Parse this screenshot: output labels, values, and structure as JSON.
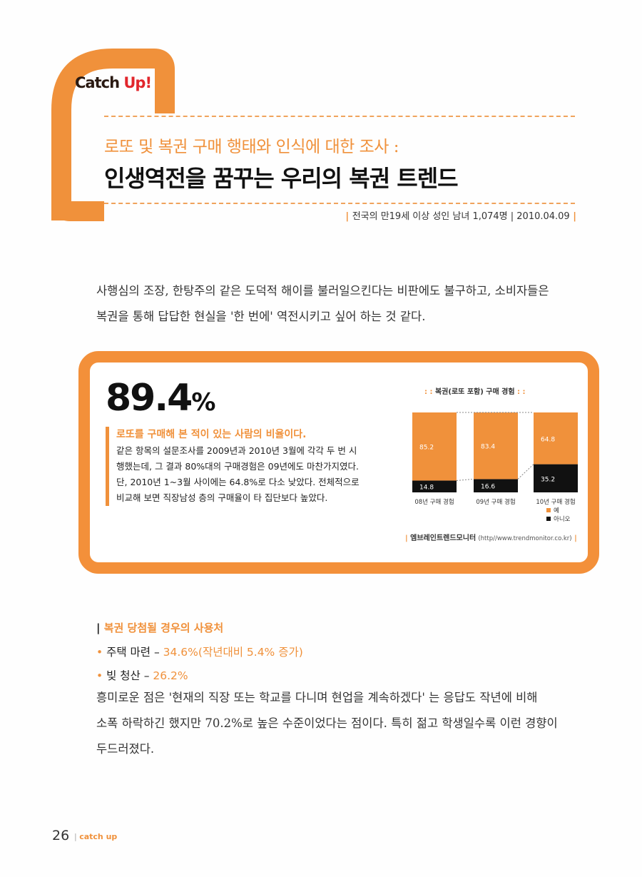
{
  "header": {
    "logo_text_a": "Catch ",
    "logo_text_b": "Up",
    "logo_text_c": "!",
    "subtitle": "로또 및 복권 구매 행태와 인식에 대한 조사 :",
    "title": "인생역전을 꿈꾸는 우리의 복권 트렌드",
    "survey_note": "전국의 만19세 이상 성인 남녀 1,074명 | 2010.04.09"
  },
  "intro": {
    "line1": "사행심의 조장, 한탕주의 같은 도덕적 해이를 불러일으킨다는 비판에도 불구하고, 소비자들은",
    "line2": "복권을 통해 답답한 현실을 '한 번에' 역전시키고 싶어 하는 것 같다."
  },
  "highlight": {
    "number": "89.4",
    "percent_sign": "%",
    "heading": "로또를 구매해 본 적이 있는 사람의 비율이다.",
    "text_lines": [
      "같은 항목의 설문조사를 2009년과 2010년 3월에 각각 두 번 시",
      "행했는데, 그 결과 80%대의 구매경험은 09년에도 마찬가지였다.",
      "단, 2010년 1~3월 사이에는 64.8%로 다소 낮았다. 전체적으로",
      "비교해 보면 직장남성 층의 구매율이 타 집단보다 높았다."
    ]
  },
  "chart_data": {
    "type": "bar",
    "stacked": true,
    "title": "복권(로또 포함) 구매 경험",
    "categories": [
      "08년 구매 경험",
      "09년 구매 경험",
      "10년 구매 경험"
    ],
    "series": [
      {
        "name": "예",
        "values": [
          85.2,
          83.4,
          64.8
        ],
        "color": "#f0913b"
      },
      {
        "name": "아니오",
        "values": [
          14.8,
          16.6,
          35.2
        ],
        "color": "#111111"
      }
    ],
    "ylim": [
      0,
      100
    ],
    "legend_position": "bottom-right",
    "source_name": "엠브레인트렌드모니터",
    "source_url": "(http//www.trendmonitor.co.kr)"
  },
  "usage": {
    "heading": "복권 당첨될 경우의 사용처",
    "items": [
      {
        "label": "주택 마련 – ",
        "value": "34.6%(작년대비 5.4% 증가)"
      },
      {
        "label": "빚 청산 – ",
        "value": "26.2%"
      }
    ],
    "para_lines": [
      "흥미로운 점은 '현재의 직장 또는 학교를 다니며 현업을 계속하겠다' 는 응답도 작년에 비해",
      "소폭 하락하긴 했지만 70.2%로 높은 수준이었다는 점이다. 특히 젊고 학생일수록 이런 경향이",
      "두드러졌다."
    ]
  },
  "footer": {
    "page_number": "26",
    "section": "catch up"
  },
  "colors": {
    "accent": "#f0913b",
    "text": "#222222"
  }
}
